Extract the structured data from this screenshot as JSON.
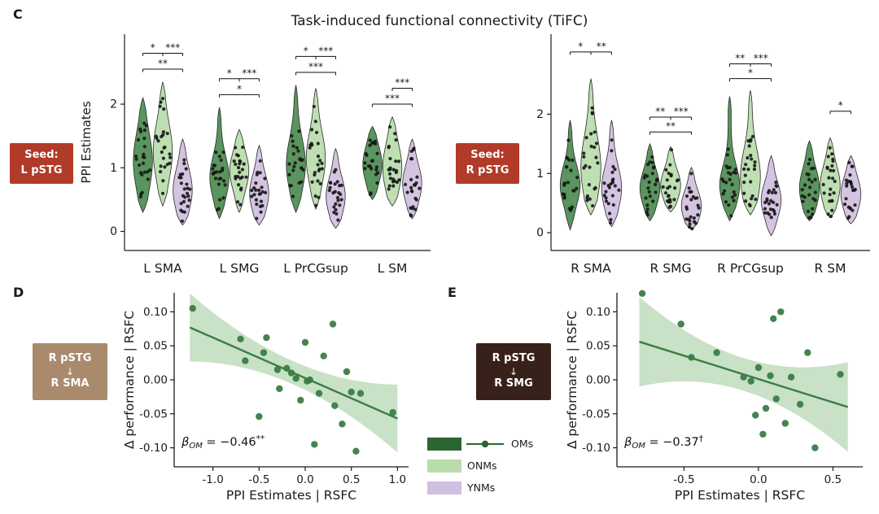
{
  "figure": {
    "title": "Task-induced functional connectivity (TiFC)",
    "panel_c": "C",
    "panel_d": "D",
    "panel_e": "E"
  },
  "colors": {
    "om_violin": "#4c8b50",
    "om_dark": "#2b6531",
    "onm": "#b9dcab",
    "ynm": "#d0bfe0",
    "dot": "#161616",
    "axis": "#1a1a1a",
    "text": "#1a1a1a",
    "seed_red": "#b23a28",
    "d_tan": "#a98a6d",
    "e_brown": "#38211a",
    "reg_green": "#3b7d46",
    "ribbon_green": "#9cc897"
  },
  "seed_left": {
    "line1": "Seed:",
    "line2": "L pSTG"
  },
  "seed_right": {
    "line1": "Seed:",
    "line2": "R pSTG"
  },
  "d_box": {
    "line1": "R pSTG",
    "arrow": "↓",
    "line2": "R SMA"
  },
  "e_box": {
    "line1": "R pSTG",
    "arrow": "↓",
    "line2": "R SMG"
  },
  "legend": {
    "items": [
      {
        "label": "OMs",
        "line_marker": true
      },
      {
        "label": "ONMs"
      },
      {
        "label": "YNMs"
      }
    ]
  },
  "chart_data": [
    {
      "type": "violin",
      "id": "violin-left",
      "seed": 7,
      "n_points": 24,
      "seed_label": "Seed: L pSTG",
      "ylabel": "PPI Estimates",
      "yticks": [
        0,
        1,
        2
      ],
      "ylim": [
        -0.3,
        3.1
      ],
      "categories": [
        "L SMA",
        "L SMG",
        "L PrCGsup",
        "L SM"
      ],
      "groups": [
        "OMs",
        "ONMs",
        "YNMs"
      ],
      "five_number": [
        [
          [
            0.3,
            0.85,
            1.1,
            1.45,
            2.1
          ],
          [
            0.4,
            0.95,
            1.25,
            1.55,
            2.35
          ],
          [
            0.1,
            0.45,
            0.65,
            0.9,
            1.45
          ]
        ],
        [
          [
            0.2,
            0.65,
            0.85,
            1.1,
            1.95
          ],
          [
            0.3,
            0.75,
            0.95,
            1.15,
            1.6
          ],
          [
            0.1,
            0.4,
            0.6,
            0.8,
            1.35
          ]
        ],
        [
          [
            0.3,
            0.8,
            1.05,
            1.35,
            2.3
          ],
          [
            0.35,
            0.9,
            1.15,
            1.45,
            2.25
          ],
          [
            0.05,
            0.35,
            0.55,
            0.75,
            1.3
          ]
        ],
        [
          [
            0.5,
            0.85,
            1.05,
            1.25,
            1.65
          ],
          [
            0.4,
            0.8,
            1.0,
            1.3,
            1.8
          ],
          [
            0.2,
            0.55,
            0.75,
            0.95,
            1.45
          ]
        ]
      ],
      "significance": [
        [
          {
            "from": 0,
            "to": 1,
            "label": "*",
            "row": 0
          },
          {
            "from": 1,
            "to": 2,
            "label": "***",
            "row": 0
          },
          {
            "from": 0,
            "to": 2,
            "label": "**",
            "row": 1
          }
        ],
        [
          {
            "from": 0,
            "to": 1,
            "label": "*",
            "row": 0
          },
          {
            "from": 1,
            "to": 2,
            "label": "***",
            "row": 0
          },
          {
            "from": 0,
            "to": 2,
            "label": "*",
            "row": 1
          }
        ],
        [
          {
            "from": 0,
            "to": 1,
            "label": "*",
            "row": 0
          },
          {
            "from": 1,
            "to": 2,
            "label": "***",
            "row": 0
          },
          {
            "from": 0,
            "to": 2,
            "label": "***",
            "row": 1
          }
        ],
        [
          {
            "from": 1,
            "to": 2,
            "label": "***",
            "row": 0
          },
          {
            "from": 0,
            "to": 2,
            "label": "***",
            "row": 1
          }
        ]
      ]
    },
    {
      "type": "violin",
      "id": "violin-right",
      "seed": 13,
      "n_points": 24,
      "seed_label": "Seed: R pSTG",
      "ylabel": "",
      "yticks": [
        0,
        1,
        2
      ],
      "ylim": [
        -0.3,
        3.35
      ],
      "categories": [
        "R SMA",
        "R SMG",
        "R PrCGsup",
        "R SM"
      ],
      "groups": [
        "OMs",
        "ONMs",
        "YNMs"
      ],
      "five_number": [
        [
          [
            0.05,
            0.6,
            0.8,
            1.05,
            1.9
          ],
          [
            0.3,
            0.8,
            1.1,
            1.5,
            2.6
          ],
          [
            0.1,
            0.5,
            0.75,
            1.0,
            1.9
          ]
        ],
        [
          [
            0.2,
            0.55,
            0.75,
            0.95,
            1.5
          ],
          [
            0.35,
            0.65,
            0.8,
            1.0,
            1.45
          ],
          [
            0.05,
            0.3,
            0.45,
            0.65,
            1.1
          ]
        ],
        [
          [
            0.2,
            0.6,
            0.8,
            1.05,
            2.3
          ],
          [
            0.3,
            0.7,
            0.95,
            1.3,
            2.4
          ],
          [
            -0.05,
            0.35,
            0.55,
            0.75,
            1.3
          ]
        ],
        [
          [
            0.2,
            0.55,
            0.75,
            1.0,
            1.55
          ],
          [
            0.25,
            0.6,
            0.8,
            1.05,
            1.6
          ],
          [
            0.15,
            0.45,
            0.65,
            0.85,
            1.3
          ]
        ]
      ],
      "significance": [
        [
          {
            "from": 0,
            "to": 1,
            "label": "*",
            "row": 0
          },
          {
            "from": 1,
            "to": 2,
            "label": "**",
            "row": 0
          }
        ],
        [
          {
            "from": 0,
            "to": 1,
            "label": "**",
            "row": 0
          },
          {
            "from": 1,
            "to": 2,
            "label": "***",
            "row": 0
          },
          {
            "from": 0,
            "to": 2,
            "label": "**",
            "row": 1
          }
        ],
        [
          {
            "from": 0,
            "to": 1,
            "label": "**",
            "row": 0
          },
          {
            "from": 1,
            "to": 2,
            "label": "***",
            "row": 0
          },
          {
            "from": 0,
            "to": 2,
            "label": "*",
            "row": 1
          }
        ],
        [
          {
            "from": 1,
            "to": 2,
            "label": "*",
            "row": 0
          }
        ]
      ]
    },
    {
      "type": "scatter",
      "id": "scatter-d",
      "xlabel": "PPI Estimates | RSFC",
      "ylabel": "Δ performance | RSFC",
      "xlim": [
        -1.42,
        1.12
      ],
      "ylim": [
        -0.128,
        0.128
      ],
      "xticks": [
        {
          "v": -1.0,
          "l": "-1.0"
        },
        {
          "v": -0.5,
          "l": "-0.5"
        },
        {
          "v": 0.0,
          "l": "0.0"
        },
        {
          "v": 0.5,
          "l": "0.5"
        },
        {
          "v": 1.0,
          "l": "1.0"
        }
      ],
      "yticks": [
        {
          "v": 0.1,
          "l": "0.10"
        },
        {
          "v": 0.05,
          "l": "0.05"
        },
        {
          "v": 0.0,
          "l": "0.00"
        },
        {
          "v": -0.05,
          "l": "-0.05"
        },
        {
          "v": -0.1,
          "l": "-0.10"
        }
      ],
      "points": [
        [
          -1.22,
          0.105
        ],
        [
          -0.7,
          0.06
        ],
        [
          -0.65,
          0.028
        ],
        [
          -0.5,
          -0.054
        ],
        [
          -0.45,
          0.04
        ],
        [
          -0.42,
          0.062
        ],
        [
          -0.3,
          0.015
        ],
        [
          -0.28,
          -0.013
        ],
        [
          -0.2,
          0.017
        ],
        [
          -0.15,
          0.01
        ],
        [
          -0.1,
          0.002
        ],
        [
          -0.05,
          -0.03
        ],
        [
          0.0,
          0.055
        ],
        [
          0.02,
          -0.002
        ],
        [
          0.05,
          0.0
        ],
        [
          0.1,
          -0.095
        ],
        [
          0.15,
          -0.02
        ],
        [
          0.2,
          0.035
        ],
        [
          0.3,
          0.082
        ],
        [
          0.32,
          -0.038
        ],
        [
          0.4,
          -0.065
        ],
        [
          0.45,
          0.012
        ],
        [
          0.5,
          -0.018
        ],
        [
          0.55,
          -0.105
        ],
        [
          0.6,
          -0.02
        ],
        [
          0.95,
          -0.048
        ]
      ],
      "regression": {
        "x0": -1.25,
        "y0": 0.077,
        "x1": 1.0,
        "y1": -0.057,
        "w0": 0.017,
        "w1": 0.033
      },
      "annotation": {
        "x": -1.34,
        "y": -0.097,
        "beta": "β",
        "sub": "OM",
        "rest": " = −0.46",
        "sup": "**"
      }
    },
    {
      "type": "scatter",
      "id": "scatter-e",
      "xlabel": "PPI Estimates | RSFC",
      "ylabel": "Δ performance | RSFC",
      "xlim": [
        -0.95,
        0.7
      ],
      "ylim": [
        -0.128,
        0.128
      ],
      "xticks": [
        {
          "v": -0.5,
          "l": "-0.5"
        },
        {
          "v": 0.0,
          "l": "0.0"
        },
        {
          "v": 0.5,
          "l": "0.5"
        }
      ],
      "yticks": [
        {
          "v": 0.1,
          "l": "0.10"
        },
        {
          "v": 0.05,
          "l": "0.05"
        },
        {
          "v": 0.0,
          "l": "0.00"
        },
        {
          "v": -0.05,
          "l": "-0.05"
        },
        {
          "v": -0.1,
          "l": "-0.10"
        }
      ],
      "points": [
        [
          -0.78,
          0.127
        ],
        [
          -0.52,
          0.082
        ],
        [
          -0.45,
          0.033
        ],
        [
          -0.28,
          0.04
        ],
        [
          -0.1,
          0.004
        ],
        [
          -0.05,
          -0.002
        ],
        [
          -0.02,
          -0.052
        ],
        [
          0.0,
          0.018
        ],
        [
          0.03,
          -0.08
        ],
        [
          0.05,
          -0.042
        ],
        [
          0.08,
          0.006
        ],
        [
          0.1,
          0.09
        ],
        [
          0.12,
          -0.028
        ],
        [
          0.15,
          0.1
        ],
        [
          0.18,
          -0.064
        ],
        [
          0.22,
          0.004
        ],
        [
          0.28,
          -0.036
        ],
        [
          0.33,
          0.04
        ],
        [
          0.38,
          -0.1
        ],
        [
          0.55,
          0.008
        ]
      ],
      "regression": {
        "x0": -0.8,
        "y0": 0.056,
        "x1": 0.6,
        "y1": -0.04,
        "w0": 0.024,
        "w1": 0.042
      },
      "annotation": {
        "x": -0.9,
        "y": -0.097,
        "beta": "β",
        "sub": "OM",
        "rest": " = −0.37",
        "sup": "†"
      }
    }
  ]
}
